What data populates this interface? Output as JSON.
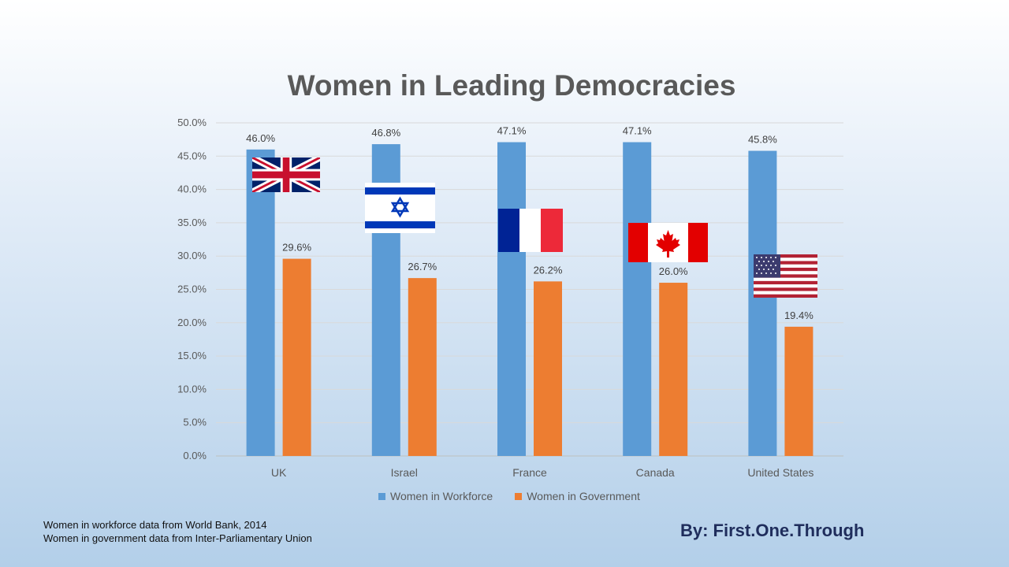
{
  "title": "Women in Leading Democracies",
  "chart_data": {
    "type": "bar",
    "title": "Women in Leading Democracies",
    "categories": [
      "UK",
      "Israel",
      "France",
      "Canada",
      "United States"
    ],
    "series": [
      {
        "name": "Women in Workforce",
        "color": "#5b9bd5",
        "values": [
          46.0,
          46.8,
          47.1,
          47.1,
          45.8
        ],
        "labels": [
          "46.0%",
          "46.8%",
          "47.1%",
          "47.1%",
          "45.8%"
        ]
      },
      {
        "name": "Women in Government",
        "color": "#ed7d31",
        "values": [
          29.6,
          26.7,
          26.2,
          26.0,
          19.4
        ],
        "labels": [
          "29.6%",
          "26.7%",
          "26.2%",
          "26.0%",
          "19.4%"
        ]
      }
    ],
    "ylim": [
      0,
      50
    ],
    "yticks": [
      "0.0%",
      "5.0%",
      "10.0%",
      "15.0%",
      "20.0%",
      "25.0%",
      "30.0%",
      "35.0%",
      "40.0%",
      "45.0%",
      "50.0%"
    ],
    "grid": true,
    "legend": "bottom",
    "flags": [
      "uk-flag",
      "israel-flag",
      "france-flag",
      "canada-flag",
      "usa-flag"
    ]
  },
  "legend": {
    "workforce": "Women in Workforce",
    "government": "Women in Government"
  },
  "source": {
    "line1": "Women in workforce data from World Bank, 2014",
    "line2": "Women in government data from Inter-Parliamentary Union"
  },
  "byline": "By: First.One.Through"
}
